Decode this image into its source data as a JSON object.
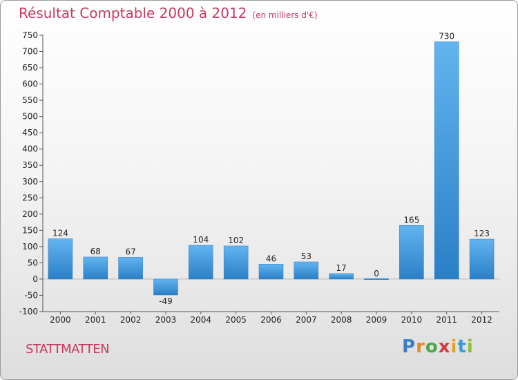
{
  "title": "Résultat Comptable 2000 à 2012",
  "unit": "(en milliers d'€)",
  "commune": "STATTMATTEN",
  "logo": {
    "letters": [
      "P",
      "r",
      "o",
      "x",
      "i",
      "t",
      "i"
    ],
    "colors": [
      "#3a7fc4",
      "#e2892a",
      "#4aa84a",
      "#d23b3b",
      "#e2a32a",
      "#3a9ad9",
      "#8bbf3a"
    ]
  },
  "colors": {
    "bar": "#4a9fe0",
    "bar_light": "#62b4f0",
    "bar_dark": "#2b7fc5",
    "title": "#c8395f"
  },
  "chart_data": {
    "type": "bar",
    "title": "Résultat Comptable 2000 à 2012",
    "categories": [
      "2000",
      "2001",
      "2002",
      "2003",
      "2004",
      "2005",
      "2006",
      "2007",
      "2008",
      "2009",
      "2010",
      "2011",
      "2012"
    ],
    "values": [
      124,
      68,
      67,
      -49,
      104,
      102,
      46,
      53,
      17,
      0,
      165,
      730,
      123
    ],
    "value_labels": [
      "124",
      "68",
      "67",
      "-49",
      "104",
      "102",
      "46",
      "53",
      "17",
      "0",
      "165",
      "730",
      "123"
    ],
    "ylim": [
      -100,
      750
    ],
    "yticks": [
      -100,
      -50,
      0,
      50,
      100,
      150,
      200,
      250,
      300,
      350,
      400,
      450,
      500,
      550,
      600,
      650,
      700,
      750
    ],
    "grid": false,
    "xlabel": "",
    "ylabel": ""
  }
}
